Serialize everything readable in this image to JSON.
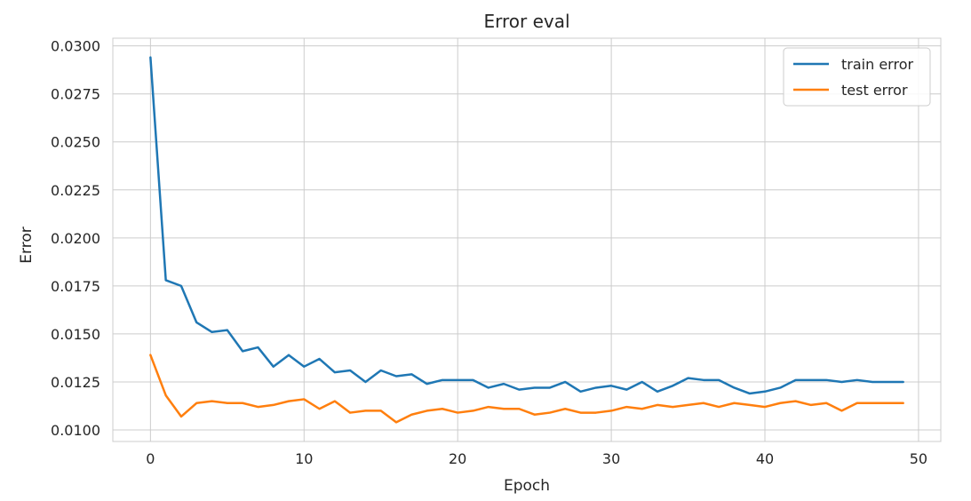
{
  "chart_data": {
    "type": "line",
    "title": "Error eval",
    "xlabel": "Epoch",
    "ylabel": "Error",
    "xlim": [
      -2.45,
      51.45
    ],
    "ylim": [
      0.0094,
      0.0304
    ],
    "xticks": [
      0,
      10,
      20,
      30,
      40,
      50
    ],
    "yticks": [
      0.01,
      0.0125,
      0.015,
      0.0175,
      0.02,
      0.0225,
      0.025,
      0.0275,
      0.03
    ],
    "ytick_labels": [
      "0.0100",
      "0.0125",
      "0.0150",
      "0.0175",
      "0.0200",
      "0.0225",
      "0.0250",
      "0.0275",
      "0.0300"
    ],
    "grid": true,
    "legend_position": "top-right",
    "x": [
      0,
      1,
      2,
      3,
      4,
      5,
      6,
      7,
      8,
      9,
      10,
      11,
      12,
      13,
      14,
      15,
      16,
      17,
      18,
      19,
      20,
      21,
      22,
      23,
      24,
      25,
      26,
      27,
      28,
      29,
      30,
      31,
      32,
      33,
      34,
      35,
      36,
      37,
      38,
      39,
      40,
      41,
      42,
      43,
      44,
      45,
      46,
      47,
      48,
      49
    ],
    "series": [
      {
        "name": "train error",
        "color": "#1f77b4",
        "values": [
          0.0294,
          0.0178,
          0.0175,
          0.0156,
          0.0151,
          0.0152,
          0.0141,
          0.0143,
          0.0133,
          0.0139,
          0.0133,
          0.0137,
          0.013,
          0.0131,
          0.0125,
          0.0131,
          0.0128,
          0.0129,
          0.0124,
          0.0126,
          0.0126,
          0.0126,
          0.0122,
          0.0124,
          0.0121,
          0.0122,
          0.0122,
          0.0125,
          0.012,
          0.0122,
          0.0123,
          0.0121,
          0.0125,
          0.012,
          0.0123,
          0.0127,
          0.0126,
          0.0126,
          0.0122,
          0.0119,
          0.012,
          0.0122,
          0.0126,
          0.0126,
          0.0126,
          0.0125,
          0.0126,
          0.0125,
          0.0125,
          0.0125
        ]
      },
      {
        "name": "test error",
        "color": "#ff7f0e",
        "values": [
          0.0139,
          0.0118,
          0.0107,
          0.0114,
          0.0115,
          0.0114,
          0.0114,
          0.0112,
          0.0113,
          0.0115,
          0.0116,
          0.0111,
          0.0115,
          0.0109,
          0.011,
          0.011,
          0.0104,
          0.0108,
          0.011,
          0.0111,
          0.0109,
          0.011,
          0.0112,
          0.0111,
          0.0111,
          0.0108,
          0.0109,
          0.0111,
          0.0109,
          0.0109,
          0.011,
          0.0112,
          0.0111,
          0.0113,
          0.0112,
          0.0113,
          0.0114,
          0.0112,
          0.0114,
          0.0113,
          0.0112,
          0.0114,
          0.0115,
          0.0113,
          0.0114,
          0.011,
          0.0114,
          0.0114,
          0.0114,
          0.0114
        ]
      }
    ]
  }
}
